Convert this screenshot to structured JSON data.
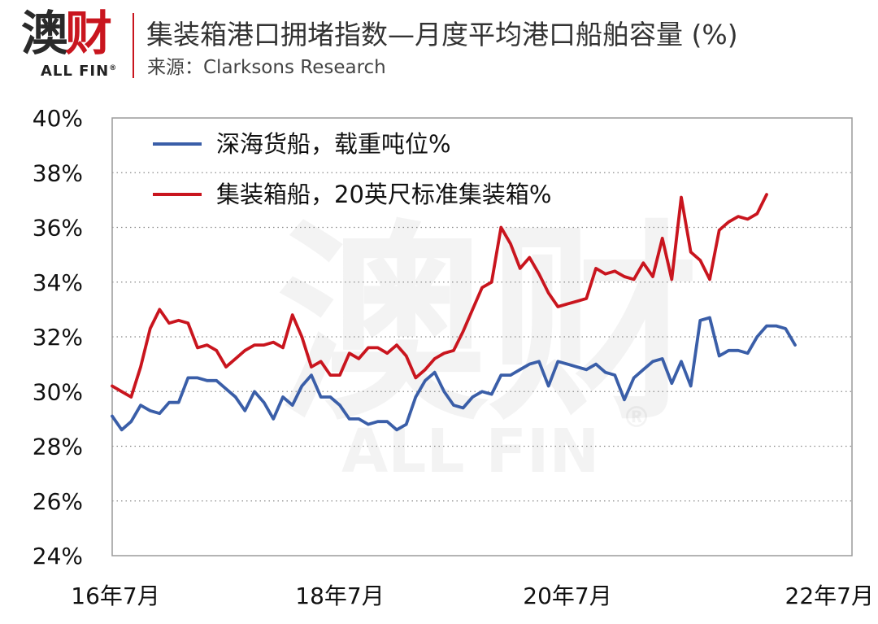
{
  "logo": {
    "cn": "澳财",
    "en": "ALL FIN",
    "reg": "®",
    "red_color": "#c9151e",
    "dark_color": "#2a2a2a"
  },
  "header": {
    "title": "集装箱港口拥堵指数—月度平均港口船舶容量 (%)",
    "subtitle": "来源：Clarksons Research"
  },
  "watermark": {
    "cn": "澳财",
    "en": "ALL FIN",
    "reg": "®"
  },
  "chart_data": {
    "type": "line",
    "title": "集装箱港口拥堵指数—月度平均港口船舶容量 (%)",
    "xlabel": "",
    "ylabel": "",
    "x_ticks": [
      "16年7月",
      "18年7月",
      "20年7月",
      "22年7月"
    ],
    "x_tick_positions": [
      0,
      24,
      48,
      72
    ],
    "ylim": [
      24,
      40
    ],
    "y_ticks": [
      "24%",
      "26%",
      "28%",
      "30%",
      "32%",
      "34%",
      "36%",
      "38%",
      "40%"
    ],
    "y_tick_values": [
      24,
      26,
      28,
      30,
      32,
      34,
      36,
      38,
      40
    ],
    "xlim": [
      0,
      78
    ],
    "grid": "horizontal-dotted",
    "legend_position": "top-left",
    "series": [
      {
        "name": "深海货船，载重吨位%",
        "color": "#3a5ea8",
        "x": [
          0,
          1,
          2,
          3,
          4,
          5,
          6,
          7,
          8,
          9,
          10,
          11,
          12,
          13,
          14,
          15,
          16,
          17,
          18,
          19,
          20,
          21,
          22,
          23,
          24,
          25,
          26,
          27,
          28,
          29,
          30,
          31,
          32,
          33,
          34,
          35,
          36,
          37,
          38,
          39,
          40,
          41,
          42,
          43,
          44,
          45,
          46,
          47,
          48,
          49,
          50,
          51,
          52,
          53,
          54,
          55,
          56,
          57,
          58,
          59,
          60,
          61,
          62,
          63,
          64,
          65,
          66,
          67,
          68,
          69,
          70,
          71,
          72,
          73,
          74,
          75,
          76
        ],
        "values": [
          29.1,
          28.6,
          28.9,
          29.5,
          29.3,
          29.2,
          29.6,
          29.6,
          30.5,
          30.5,
          30.4,
          30.4,
          30.1,
          29.8,
          29.3,
          30.0,
          29.6,
          29.0,
          29.8,
          29.5,
          30.2,
          30.6,
          29.8,
          29.8,
          29.5,
          29.0,
          29.0,
          28.8,
          28.9,
          28.9,
          28.6,
          28.8,
          29.8,
          30.4,
          30.7,
          30.0,
          29.5,
          29.4,
          29.8,
          30.0,
          29.9,
          30.6,
          30.6,
          30.8,
          31.0,
          31.1,
          30.2,
          31.1,
          31.0,
          30.9,
          30.8,
          31.0,
          30.7,
          30.6,
          29.7,
          30.5,
          30.8,
          31.1,
          31.2,
          30.3,
          31.1,
          30.2,
          32.6,
          32.7,
          31.3,
          31.5,
          31.5,
          31.4,
          32.0,
          32.4,
          32.4,
          32.3,
          31.7,
          null,
          null,
          null,
          null
        ]
      },
      {
        "name": "集装箱船，20英尺标准集装箱%",
        "color": "#c9151e",
        "x": [
          0,
          1,
          2,
          3,
          4,
          5,
          6,
          7,
          8,
          9,
          10,
          11,
          12,
          13,
          14,
          15,
          16,
          17,
          18,
          19,
          20,
          21,
          22,
          23,
          24,
          25,
          26,
          27,
          28,
          29,
          30,
          31,
          32,
          33,
          34,
          35,
          36,
          37,
          38,
          39,
          40,
          41,
          42,
          43,
          44,
          45,
          46,
          47,
          48,
          49,
          50,
          51,
          52,
          53,
          54,
          55,
          56,
          57,
          58,
          59,
          60,
          61,
          62,
          63,
          64,
          65,
          66,
          67,
          68,
          69,
          70,
          71,
          72,
          73,
          74,
          75,
          76
        ],
        "values": [
          30.2,
          30.0,
          29.8,
          30.9,
          32.3,
          33.0,
          32.5,
          32.6,
          32.5,
          31.6,
          31.7,
          31.5,
          30.9,
          31.2,
          31.5,
          31.7,
          31.7,
          31.8,
          31.6,
          32.8,
          32.0,
          30.9,
          31.1,
          30.6,
          30.6,
          31.4,
          31.2,
          31.6,
          31.6,
          31.4,
          31.7,
          31.3,
          30.5,
          30.8,
          31.2,
          31.4,
          31.5,
          32.2,
          33.0,
          33.8,
          34.0,
          36.0,
          35.4,
          34.5,
          34.9,
          34.3,
          33.6,
          33.1,
          33.2,
          33.3,
          33.4,
          34.5,
          34.3,
          34.4,
          34.2,
          34.1,
          34.7,
          34.2,
          35.6,
          34.1,
          37.1,
          35.1,
          34.8,
          34.1,
          35.9,
          36.2,
          36.4,
          36.3,
          36.5,
          37.2,
          null,
          null,
          null,
          null,
          null,
          null,
          null
        ]
      }
    ]
  }
}
